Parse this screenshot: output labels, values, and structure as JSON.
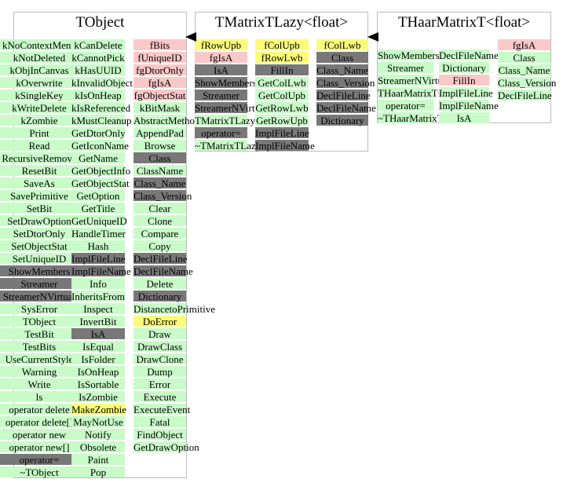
{
  "boxes": [
    {
      "title": "TObject",
      "columns": [
        [
          {
            "t": "kNoContextMenu",
            "c": "g"
          },
          {
            "t": "kNotDeleted",
            "c": "g"
          },
          {
            "t": "kObjInCanvas",
            "c": "g"
          },
          {
            "t": "kOverwrite",
            "c": "g"
          },
          {
            "t": "kSingleKey",
            "c": "g"
          },
          {
            "t": "kWriteDelete",
            "c": "g"
          },
          {
            "t": "kZombie",
            "c": "g"
          },
          {
            "t": "Print",
            "c": "g"
          },
          {
            "t": "Read",
            "c": "g"
          },
          {
            "t": "RecursiveRemove",
            "c": "g"
          },
          {
            "t": "ResetBit",
            "c": "g"
          },
          {
            "t": "SaveAs",
            "c": "g"
          },
          {
            "t": "SavePrimitive",
            "c": "g"
          },
          {
            "t": "SetBit",
            "c": "g"
          },
          {
            "t": "SetDrawOption",
            "c": "g"
          },
          {
            "t": "SetDtorOnly",
            "c": "g"
          },
          {
            "t": "SetObjectStat",
            "c": "g"
          },
          {
            "t": "SetUniqueID",
            "c": "g"
          },
          {
            "t": "ShowMembers",
            "c": "d"
          },
          {
            "t": "Streamer",
            "c": "d"
          },
          {
            "t": "StreamerNVirtual",
            "c": "d"
          },
          {
            "t": "SysError",
            "c": "g"
          },
          {
            "t": "TObject",
            "c": "g"
          },
          {
            "t": "TestBit",
            "c": "g"
          },
          {
            "t": "TestBits",
            "c": "g"
          },
          {
            "t": "UseCurrentStyle",
            "c": "g"
          },
          {
            "t": "Warning",
            "c": "g"
          },
          {
            "t": "Write",
            "c": "g"
          },
          {
            "t": "ls",
            "c": "g"
          },
          {
            "t": "operator delete",
            "c": "g"
          },
          {
            "t": "operator delete[]",
            "c": "g"
          },
          {
            "t": "operator new",
            "c": "g"
          },
          {
            "t": "operator new[]",
            "c": "g"
          },
          {
            "t": "operator=",
            "c": "d"
          },
          {
            "t": "~TObject",
            "c": "g"
          }
        ],
        [
          {
            "t": "kCanDelete",
            "c": "g"
          },
          {
            "t": "kCannotPick",
            "c": "g"
          },
          {
            "t": "kHasUUID",
            "c": "g"
          },
          {
            "t": "kInvalidObject",
            "c": "g"
          },
          {
            "t": "kIsOnHeap",
            "c": "g"
          },
          {
            "t": "kIsReferenced",
            "c": "g"
          },
          {
            "t": "kMustCleanup",
            "c": "g"
          },
          {
            "t": "GetDtorOnly",
            "c": "g"
          },
          {
            "t": "GetIconName",
            "c": "g"
          },
          {
            "t": "GetName",
            "c": "g"
          },
          {
            "t": "GetObjectInfo",
            "c": "g"
          },
          {
            "t": "GetObjectStat",
            "c": "g"
          },
          {
            "t": "GetOption",
            "c": "g"
          },
          {
            "t": "GetTitle",
            "c": "g"
          },
          {
            "t": "GetUniqueID",
            "c": "g"
          },
          {
            "t": "HandleTimer",
            "c": "g"
          },
          {
            "t": "Hash",
            "c": "g"
          },
          {
            "t": "ImplFileLine",
            "c": "d"
          },
          {
            "t": "ImplFileName",
            "c": "d"
          },
          {
            "t": "Info",
            "c": "g"
          },
          {
            "t": "InheritsFrom",
            "c": "g"
          },
          {
            "t": "Inspect",
            "c": "g"
          },
          {
            "t": "InvertBit",
            "c": "g"
          },
          {
            "t": "IsA",
            "c": "d"
          },
          {
            "t": "IsEqual",
            "c": "g"
          },
          {
            "t": "IsFolder",
            "c": "g"
          },
          {
            "t": "IsOnHeap",
            "c": "g"
          },
          {
            "t": "IsSortable",
            "c": "g"
          },
          {
            "t": "IsZombie",
            "c": "g"
          },
          {
            "t": "MakeZombie",
            "c": "y"
          },
          {
            "t": "MayNotUse",
            "c": "g"
          },
          {
            "t": "Notify",
            "c": "g"
          },
          {
            "t": "Obsolete",
            "c": "g"
          },
          {
            "t": "Paint",
            "c": "g"
          },
          {
            "t": "Pop",
            "c": "g"
          }
        ],
        [
          {
            "t": "fBits",
            "c": "r"
          },
          {
            "t": "fUniqueID",
            "c": "r"
          },
          {
            "t": "fgDtorOnly",
            "c": "r"
          },
          {
            "t": "fgIsA",
            "c": "r"
          },
          {
            "t": "fgObjectStat",
            "c": "r"
          },
          {
            "t": "kBitMask",
            "c": "g"
          },
          {
            "t": "AbstractMethod",
            "c": "g"
          },
          {
            "t": "AppendPad",
            "c": "g"
          },
          {
            "t": "Browse",
            "c": "g"
          },
          {
            "t": "Class",
            "c": "d"
          },
          {
            "t": "ClassName",
            "c": "g"
          },
          {
            "t": "Class_Name",
            "c": "d"
          },
          {
            "t": "Class_Version",
            "c": "d"
          },
          {
            "t": "Clear",
            "c": "g"
          },
          {
            "t": "Clone",
            "c": "g"
          },
          {
            "t": "Compare",
            "c": "g"
          },
          {
            "t": "Copy",
            "c": "g"
          },
          {
            "t": "DeclFileLine",
            "c": "d"
          },
          {
            "t": "DeclFileName",
            "c": "d"
          },
          {
            "t": "Delete",
            "c": "g"
          },
          {
            "t": "Dictionary",
            "c": "d"
          },
          {
            "t": "DistancetoPrimitive",
            "c": "g"
          },
          {
            "t": "DoError",
            "c": "y"
          },
          {
            "t": "Draw",
            "c": "g"
          },
          {
            "t": "DrawClass",
            "c": "g"
          },
          {
            "t": "DrawClone",
            "c": "g"
          },
          {
            "t": "Dump",
            "c": "g"
          },
          {
            "t": "Error",
            "c": "g"
          },
          {
            "t": "Execute",
            "c": "g"
          },
          {
            "t": "ExecuteEvent",
            "c": "g"
          },
          {
            "t": "Fatal",
            "c": "g"
          },
          {
            "t": "FindObject",
            "c": "g"
          },
          {
            "t": "GetDrawOption",
            "c": "g"
          }
        ]
      ]
    },
    {
      "title": "TMatrixTLazy<float>",
      "columns": [
        [
          {
            "t": "fRowUpb",
            "c": "y"
          },
          {
            "t": "fgIsA",
            "c": "r"
          },
          {
            "t": "IsA",
            "c": "d"
          },
          {
            "t": "ShowMembers",
            "c": "d"
          },
          {
            "t": "Streamer",
            "c": "d"
          },
          {
            "t": "StreamerNVirtual",
            "c": "d"
          },
          {
            "t": "TMatrixTLazy<float>",
            "c": "g"
          },
          {
            "t": "operator=",
            "c": "d"
          },
          {
            "t": "~TMatrixTLazy<float>",
            "c": "g"
          }
        ],
        [
          {
            "t": "fColUpb",
            "c": "y"
          },
          {
            "t": "fRowLwb",
            "c": "y"
          },
          {
            "t": "FillIn",
            "c": "d"
          },
          {
            "t": "GetColLwb",
            "c": "g"
          },
          {
            "t": "GetColUpb",
            "c": "g"
          },
          {
            "t": "GetRowLwb",
            "c": "g"
          },
          {
            "t": "GetRowUpb",
            "c": "g"
          },
          {
            "t": "ImplFileLine",
            "c": "d"
          },
          {
            "t": "ImplFileName",
            "c": "d"
          }
        ],
        [
          {
            "t": "fColLwb",
            "c": "y"
          },
          {
            "t": "Class",
            "c": "d"
          },
          {
            "t": "Class_Name",
            "c": "d"
          },
          {
            "t": "Class_Version",
            "c": "d"
          },
          {
            "t": "DeclFileLine",
            "c": "d"
          },
          {
            "t": "DeclFileName",
            "c": "d"
          },
          {
            "t": "Dictionary",
            "c": "d"
          }
        ]
      ]
    },
    {
      "title": "THaarMatrixT<float>",
      "columns": [
        [
          {
            "t": "ShowMembers",
            "c": "g"
          },
          {
            "t": "Streamer",
            "c": "g"
          },
          {
            "t": "StreamerNVirtual",
            "c": "g"
          },
          {
            "t": "THaarMatrixT<float>",
            "c": "g"
          },
          {
            "t": "operator=",
            "c": "g"
          },
          {
            "t": "~THaarMatrixT<float>",
            "c": "g"
          }
        ],
        [
          {
            "t": "DeclFileName",
            "c": "g"
          },
          {
            "t": "Dictionary",
            "c": "g"
          },
          {
            "t": "FillIn",
            "c": "r"
          },
          {
            "t": "ImplFileLine",
            "c": "g"
          },
          {
            "t": "ImplFileName",
            "c": "g"
          },
          {
            "t": "IsA",
            "c": "g"
          }
        ],
        [
          {
            "t": "fgIsA",
            "c": "r"
          },
          {
            "t": "Class",
            "c": "g"
          },
          {
            "t": "Class_Name",
            "c": "g"
          },
          {
            "t": "Class_Version",
            "c": "g"
          },
          {
            "t": "DeclFileLine",
            "c": "g"
          }
        ]
      ]
    }
  ],
  "colors": {
    "green": "#c8fbc8",
    "dark": "#787878",
    "pink": "#fbc8c8",
    "yellow": "#fbfb78"
  }
}
